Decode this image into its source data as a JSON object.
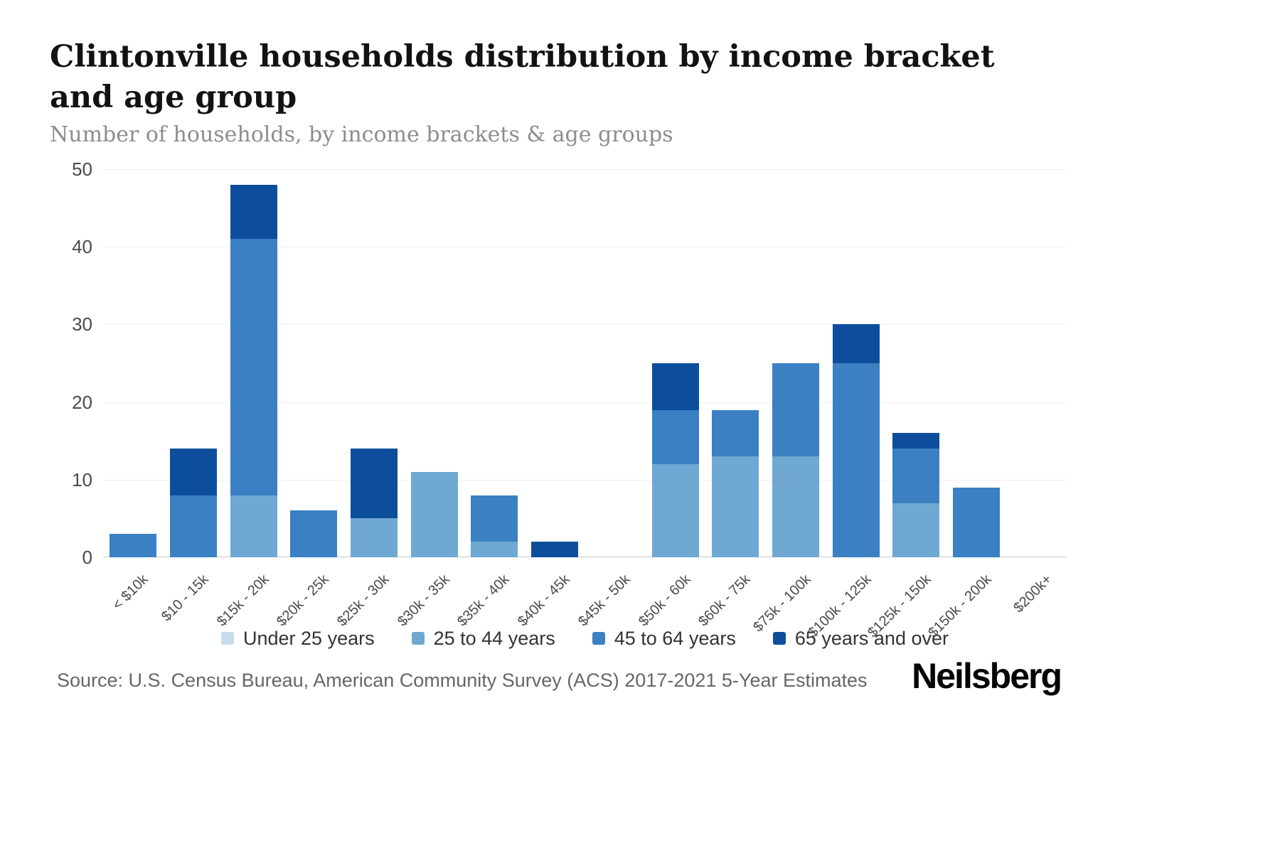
{
  "header": {
    "title": "Clintonville households distribution by income bracket and age group",
    "subtitle": "Number of households, by income brackets & age groups"
  },
  "chart_data": {
    "type": "bar",
    "stacked": true,
    "title": "Clintonville households distribution by income bracket and age group",
    "subtitle": "Number of households, by income brackets & age groups",
    "xlabel": "",
    "ylabel": "",
    "ylim": [
      0,
      50
    ],
    "yticks": [
      0,
      10,
      20,
      30,
      40,
      50
    ],
    "grid": true,
    "legend_position": "bottom",
    "categories": [
      "< $10k",
      "$10 - 15k",
      "$15k - 20k",
      "$20k - 25k",
      "$25k - 30k",
      "$30k - 35k",
      "$35k - 40k",
      "$40k - 45k",
      "$45k - 50k",
      "$50k - 60k",
      "$60k - 75k",
      "$75k - 100k",
      "$100k - 125k",
      "$125k - 150k",
      "$150k - 200k",
      "$200k+"
    ],
    "series": [
      {
        "name": "Under 25 years",
        "color": "#c7dcec",
        "values": [
          0,
          0,
          0,
          0,
          0,
          0,
          0,
          0,
          0,
          0,
          0,
          0,
          0,
          0,
          0,
          0
        ]
      },
      {
        "name": "25 to 44 years",
        "color": "#6fa8d2",
        "values": [
          0,
          0,
          8,
          0,
          5,
          11,
          2,
          0,
          0,
          12,
          13,
          13,
          0,
          7,
          0,
          0
        ]
      },
      {
        "name": "45 to 64 years",
        "color": "#3a80c2",
        "values": [
          3,
          8,
          33,
          6,
          0,
          0,
          6,
          0,
          0,
          7,
          6,
          12,
          25,
          7,
          9,
          0
        ]
      },
      {
        "name": "65 years and over",
        "color": "#0d4e9c",
        "values": [
          0,
          6,
          7,
          0,
          9,
          0,
          0,
          2,
          0,
          6,
          0,
          0,
          5,
          2,
          0,
          0
        ]
      }
    ]
  },
  "footer": {
    "source": "Source: U.S. Census Bureau, American Community Survey (ACS) 2017-2021 5-Year Estimates",
    "brand": "Neilsberg"
  }
}
